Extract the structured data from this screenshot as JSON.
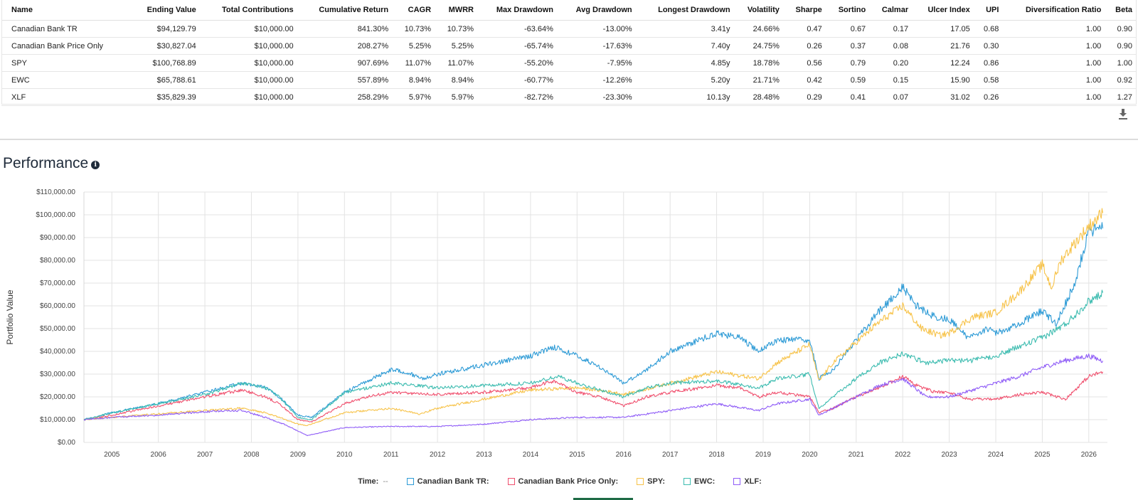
{
  "table": {
    "columns": [
      "Name",
      "Ending Value",
      "Total Contributions",
      "Cumulative Return",
      "CAGR",
      "MWRR",
      "Max Drawdown",
      "Avg Drawdown",
      "Longest Drawdown",
      "Volatility",
      "Sharpe",
      "Sortino",
      "Calmar",
      "Ulcer Index",
      "UPI",
      "Diversification Ratio",
      "Beta"
    ],
    "rows": [
      [
        "Canadian Bank TR",
        "$94,129.79",
        "$10,000.00",
        "841.30%",
        "10.73%",
        "10.73%",
        "-63.64%",
        "-13.00%",
        "3.41y",
        "24.66%",
        "0.47",
        "0.67",
        "0.17",
        "17.05",
        "0.68",
        "1.00",
        "0.90"
      ],
      [
        "Canadian Bank Price Only",
        "$30,827.04",
        "$10,000.00",
        "208.27%",
        "5.25%",
        "5.25%",
        "-65.74%",
        "-17.63%",
        "7.40y",
        "24.75%",
        "0.26",
        "0.37",
        "0.08",
        "21.76",
        "0.30",
        "1.00",
        "0.90"
      ],
      [
        "SPY",
        "$100,768.89",
        "$10,000.00",
        "907.69%",
        "11.07%",
        "11.07%",
        "-55.20%",
        "-7.95%",
        "4.85y",
        "18.78%",
        "0.56",
        "0.79",
        "0.20",
        "12.24",
        "0.86",
        "1.00",
        "1.00"
      ],
      [
        "EWC",
        "$65,788.61",
        "$10,000.00",
        "557.89%",
        "8.94%",
        "8.94%",
        "-60.77%",
        "-12.26%",
        "5.20y",
        "21.71%",
        "0.42",
        "0.59",
        "0.15",
        "15.90",
        "0.58",
        "1.00",
        "0.92"
      ],
      [
        "XLF",
        "$35,829.39",
        "$10,000.00",
        "258.29%",
        "5.97%",
        "5.97%",
        "-82.72%",
        "-23.30%",
        "10.13y",
        "28.48%",
        "0.29",
        "0.41",
        "0.07",
        "31.02",
        "0.26",
        "1.00",
        "1.27"
      ]
    ]
  },
  "icons": {
    "download": "download-icon",
    "info": "info-icon"
  },
  "performance": {
    "title": "Performance",
    "info_glyph": "i"
  },
  "legend": {
    "time_label": "Time:",
    "time_value": "--",
    "items": [
      {
        "label": "Canadian Bank TR:",
        "color": "#2e9bd6"
      },
      {
        "label": "Canadian Bank Price Only:",
        "color": "#f0506e"
      },
      {
        "label": "SPY:",
        "color": "#f7c34a"
      },
      {
        "label": "EWC:",
        "color": "#3dbcb0"
      },
      {
        "label": "XLF:",
        "color": "#8f5cf7"
      }
    ]
  },
  "chart_data": {
    "type": "line",
    "ylabel": "Portfolio Value",
    "xlabel": "",
    "ylim": [
      0,
      110000
    ],
    "xlim": [
      2004.4,
      2026.4
    ],
    "y_ticks": [
      "$0.00",
      "$10,000.00",
      "$20,000.00",
      "$30,000.00",
      "$40,000.00",
      "$50,000.00",
      "$60,000.00",
      "$70,000.00",
      "$80,000.00",
      "$90,000.00",
      "$100,000.00",
      "$110,000.00"
    ],
    "x_ticks": [
      "2005",
      "2006",
      "2007",
      "2008",
      "2009",
      "2010",
      "2011",
      "2012",
      "2013",
      "2014",
      "2015",
      "2016",
      "2017",
      "2018",
      "2019",
      "2020",
      "2021",
      "2022",
      "2023",
      "2024",
      "2025",
      "2026"
    ],
    "grid": true,
    "legend_position": "bottom",
    "series": [
      {
        "name": "Canadian Bank TR",
        "color": "#2e9bd6",
        "x": [
          2004.4,
          2005,
          2006,
          2007,
          2007.8,
          2008.3,
          2008.6,
          2009.0,
          2009.3,
          2010,
          2010.5,
          2011,
          2011.3,
          2011.7,
          2012,
          2013,
          2014,
          2014.5,
          2015,
          2015.5,
          2016,
          2016.5,
          2017,
          2018,
          2018.5,
          2018.9,
          2019.3,
          2020.0,
          2020.2,
          2020.5,
          2021,
          2021.5,
          2022,
          2022.3,
          2022.7,
          2023,
          2023.4,
          2023.8,
          2024,
          2024.5,
          2025,
          2025.3,
          2025.7,
          2026,
          2026.3
        ],
        "y": [
          10000,
          13000,
          17000,
          22000,
          26000,
          24000,
          20000,
          12000,
          11000,
          22000,
          27000,
          32000,
          31000,
          28000,
          30000,
          34000,
          38000,
          42000,
          38000,
          33000,
          26000,
          32000,
          40000,
          48000,
          46000,
          40000,
          45000,
          45000,
          28000,
          32000,
          45000,
          58000,
          68000,
          60000,
          55000,
          54000,
          46000,
          50000,
          48000,
          52000,
          58000,
          52000,
          70000,
          93000,
          94000
        ]
      },
      {
        "name": "Canadian Bank Price Only",
        "color": "#f0506e",
        "x": [
          2004.4,
          2005,
          2006,
          2007,
          2007.8,
          2008.3,
          2008.6,
          2009.0,
          2009.3,
          2010,
          2010.5,
          2011,
          2012,
          2013,
          2014,
          2014.5,
          2015,
          2015.5,
          2016,
          2016.5,
          2017,
          2018,
          2018.5,
          2018.9,
          2019.3,
          2020.0,
          2020.2,
          2020.5,
          2021,
          2021.5,
          2022,
          2022.3,
          2022.7,
          2023,
          2023.4,
          2024,
          2024.5,
          2025,
          2025.5,
          2026,
          2026.3
        ],
        "y": [
          10000,
          12000,
          16000,
          20000,
          23000,
          20000,
          17000,
          10000,
          9000,
          17000,
          20000,
          22000,
          21000,
          22000,
          24000,
          27000,
          22000,
          20000,
          16000,
          20000,
          22000,
          25000,
          24000,
          20000,
          22000,
          20000,
          13000,
          15000,
          20000,
          24000,
          29000,
          25000,
          22000,
          22000,
          19000,
          19000,
          21000,
          22000,
          19000,
          29000,
          31000
        ]
      },
      {
        "name": "SPY",
        "color": "#f7c34a",
        "x": [
          2004.4,
          2005,
          2006,
          2007,
          2007.8,
          2008.3,
          2008.6,
          2009.0,
          2009.2,
          2010,
          2011,
          2011.6,
          2012,
          2013,
          2014,
          2015,
          2015.8,
          2016,
          2017,
          2018,
          2018.9,
          2019.3,
          2020.0,
          2020.2,
          2020.5,
          2021,
          2021.5,
          2022,
          2022.4,
          2022.8,
          2023,
          2023.5,
          2024,
          2024.5,
          2025,
          2025.2,
          2025.4,
          2026,
          2026.3
        ],
        "y": [
          10000,
          11000,
          12500,
          14000,
          15000,
          13000,
          11000,
          8000,
          7500,
          13000,
          15000,
          12500,
          15000,
          19000,
          23000,
          24000,
          22000,
          21000,
          26000,
          31000,
          28000,
          35000,
          43000,
          27000,
          35000,
          44000,
          53000,
          60000,
          50000,
          47000,
          48000,
          55000,
          57000,
          66000,
          78000,
          68000,
          80000,
          95000,
          100768
        ]
      },
      {
        "name": "EWC",
        "color": "#3dbcb0",
        "x": [
          2004.4,
          2005,
          2006,
          2007,
          2007.8,
          2008.3,
          2008.6,
          2009.0,
          2009.3,
          2010,
          2011,
          2012,
          2013,
          2014,
          2014.6,
          2015,
          2016,
          2016.5,
          2017,
          2018,
          2018.9,
          2019.3,
          2020.0,
          2020.2,
          2020.5,
          2021,
          2021.5,
          2022,
          2022.5,
          2023,
          2023.5,
          2024,
          2024.5,
          2025,
          2025.5,
          2026,
          2026.3
        ],
        "y": [
          10000,
          13000,
          17000,
          21000,
          26000,
          24000,
          20000,
          11000,
          10000,
          22000,
          26000,
          24000,
          25000,
          26000,
          29000,
          26000,
          20000,
          24000,
          26000,
          27000,
          24000,
          28000,
          30000,
          15000,
          20000,
          28000,
          35000,
          39000,
          35000,
          36000,
          36000,
          38000,
          42000,
          46000,
          52000,
          62000,
          65788
        ]
      },
      {
        "name": "XLF",
        "color": "#8f5cf7",
        "x": [
          2004.4,
          2005,
          2006,
          2007,
          2007.8,
          2008.3,
          2008.7,
          2009.0,
          2009.2,
          2010,
          2011,
          2012,
          2013,
          2014,
          2015,
          2016,
          2017,
          2018,
          2018.9,
          2019.3,
          2020.0,
          2020.2,
          2020.5,
          2021,
          2021.5,
          2022,
          2022.5,
          2023,
          2023.5,
          2024,
          2024.5,
          2025,
          2025.5,
          2026,
          2026.3
        ],
        "y": [
          10000,
          11000,
          12000,
          13500,
          14000,
          11000,
          8000,
          5000,
          3000,
          6500,
          7000,
          7000,
          8000,
          10000,
          11000,
          11000,
          14000,
          17000,
          14000,
          17000,
          19000,
          12000,
          15000,
          20000,
          25000,
          28000,
          20000,
          20000,
          23000,
          26000,
          29000,
          33000,
          36000,
          38000,
          35829
        ]
      }
    ]
  }
}
